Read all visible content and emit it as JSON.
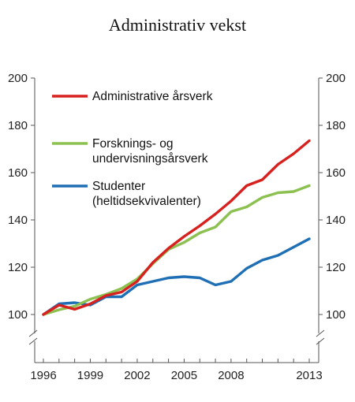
{
  "chart_data": {
    "type": "line",
    "title": "Administrativ vekst",
    "xlabel": "",
    "ylabel": "",
    "x": [
      1996,
      1997,
      1998,
      1999,
      2000,
      2001,
      2002,
      2003,
      2004,
      2005,
      2006,
      2007,
      2008,
      2009,
      2010,
      2011,
      2012,
      2013
    ],
    "x_tick_labels": [
      "1996",
      "1999",
      "2002",
      "2005",
      "2008",
      "2013"
    ],
    "y_ticks": [
      100,
      120,
      140,
      160,
      180,
      200
    ],
    "ylim": [
      100,
      200
    ],
    "axis_break_below": 100,
    "right_axis_mirrors_left": true,
    "grid": false,
    "legend_position": "upper-left",
    "series": [
      {
        "name": "Administrative årsverk",
        "color": "#d7211f",
        "values": [
          100,
          104,
          102.2,
          104.5,
          108,
          109.5,
          114,
          122,
          128,
          133,
          137.5,
          142.5,
          148,
          154.5,
          157,
          163.5,
          168,
          173.5
        ]
      },
      {
        "name": "Forsknings- og undervisningsårsverk",
        "color": "#8cc152",
        "values": [
          100,
          102,
          103.5,
          106.5,
          108.5,
          111,
          115,
          121.5,
          127.5,
          130.5,
          134.5,
          137,
          143.5,
          145.5,
          149.5,
          151.5,
          152,
          154.5
        ]
      },
      {
        "name": "Studenter (heltidsekvivalenter)",
        "color": "#1f6fb5",
        "values": [
          100,
          104.5,
          105,
          104,
          107.5,
          107.5,
          112.5,
          114,
          115.5,
          116,
          115.5,
          112.5,
          114,
          119.5,
          123,
          125,
          128.5,
          132
        ]
      }
    ],
    "legend": [
      {
        "lines": [
          "Administrative årsverk"
        ],
        "color": "#d7211f"
      },
      {
        "lines": [
          "Forsknings- og",
          "undervisningsårsverk"
        ],
        "color": "#8cc152"
      },
      {
        "lines": [
          "Studenter",
          "(heltidsekvivalenter)"
        ],
        "color": "#1f6fb5"
      }
    ]
  }
}
